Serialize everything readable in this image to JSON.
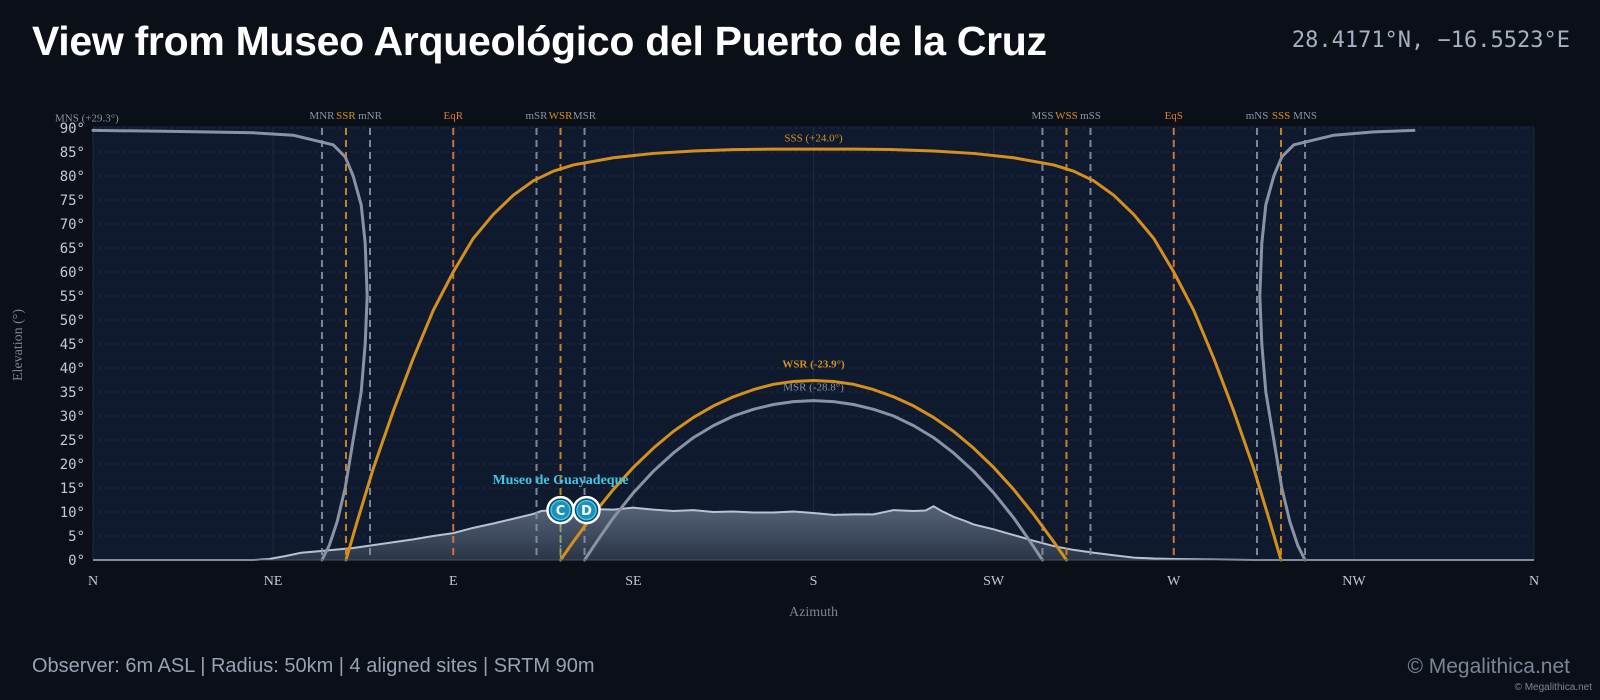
{
  "header": {
    "title": "View from Museo Arqueológico del Puerto de la Cruz",
    "coordinates": "28.4171°N, −16.5523°E"
  },
  "footer": {
    "info": "Observer: 6m ASL  |  Radius: 50km  |  4 aligned sites  |  SRTM 90m",
    "brand": "© Megalithica.net",
    "brand_small": "© Megalithica.net"
  },
  "colors": {
    "background": "#0b0f17",
    "plot_bg": "#0f1a2e",
    "solar": "#d4901f",
    "lunar": "#8a93a5",
    "equinox": "#e07b39",
    "terrain": "#b9c2d0",
    "site": "#3ec8e8"
  },
  "chart_data": {
    "type": "line",
    "title": "",
    "xlabel": "Azimuth",
    "ylabel": "Elevation (°)",
    "xlim": [
      0,
      360
    ],
    "ylim": [
      0,
      90
    ],
    "x_ticks": [
      {
        "value": 0,
        "label": "N"
      },
      {
        "value": 45,
        "label": "NE"
      },
      {
        "value": 90,
        "label": "E"
      },
      {
        "value": 135,
        "label": "SE"
      },
      {
        "value": 180,
        "label": "S"
      },
      {
        "value": 225,
        "label": "SW"
      },
      {
        "value": 270,
        "label": "W"
      },
      {
        "value": 315,
        "label": "NW"
      },
      {
        "value": 360,
        "label": "N"
      }
    ],
    "y_ticks": [
      {
        "value": 0,
        "label": "0°"
      },
      {
        "value": 5,
        "label": "5°"
      },
      {
        "value": 10,
        "label": "10°"
      },
      {
        "value": 15,
        "label": "15°"
      },
      {
        "value": 20,
        "label": "20°"
      },
      {
        "value": 25,
        "label": "25°"
      },
      {
        "value": 30,
        "label": "30°"
      },
      {
        "value": 35,
        "label": "35°"
      },
      {
        "value": 40,
        "label": "40°"
      },
      {
        "value": 45,
        "label": "45°"
      },
      {
        "value": 50,
        "label": "50°"
      },
      {
        "value": 55,
        "label": "55°"
      },
      {
        "value": 60,
        "label": "60°"
      },
      {
        "value": 65,
        "label": "65°"
      },
      {
        "value": 70,
        "label": "70°"
      },
      {
        "value": 75,
        "label": "75°"
      },
      {
        "value": 80,
        "label": "80°"
      },
      {
        "value": 85,
        "label": "85°"
      },
      {
        "value": 90,
        "label": "90°"
      }
    ],
    "grid": true,
    "vlines": [
      {
        "label": "MNR",
        "azimuth": 57.2,
        "kind": "lunar"
      },
      {
        "label": "SSR",
        "azimuth": 63.2,
        "kind": "solar"
      },
      {
        "label": "mNR",
        "azimuth": 69.2,
        "kind": "lunar"
      },
      {
        "label": "EqR",
        "azimuth": 90.0,
        "kind": "equinox"
      },
      {
        "label": "mSR",
        "azimuth": 110.8,
        "kind": "lunar"
      },
      {
        "label": "WSR",
        "azimuth": 116.8,
        "kind": "solar"
      },
      {
        "label": "MSR",
        "azimuth": 122.8,
        "kind": "lunar"
      },
      {
        "label": "MSS",
        "azimuth": 237.2,
        "kind": "lunar"
      },
      {
        "label": "WSS",
        "azimuth": 243.2,
        "kind": "solar"
      },
      {
        "label": "mSS",
        "azimuth": 249.2,
        "kind": "lunar"
      },
      {
        "label": "EqS",
        "azimuth": 270.0,
        "kind": "equinox"
      },
      {
        "label": "mNS",
        "azimuth": 290.8,
        "kind": "lunar"
      },
      {
        "label": "SSS",
        "azimuth": 296.8,
        "kind": "solar"
      },
      {
        "label": "MNS",
        "azimuth": 302.8,
        "kind": "lunar"
      }
    ],
    "series": [
      {
        "name": "SSS (+24.0°)",
        "kind": "solar",
        "x": [
          63.2,
          66,
          70,
          75,
          80,
          85,
          90,
          95,
          100,
          105,
          110,
          115,
          120,
          130,
          140,
          150,
          160,
          170,
          180,
          190,
          200,
          210,
          220,
          230,
          240,
          245,
          250,
          255,
          260,
          265,
          270,
          275,
          280,
          285,
          290,
          294,
          296.8
        ],
        "y": [
          0,
          8,
          19,
          31,
          42,
          52,
          60,
          67,
          72,
          76,
          79,
          81,
          82.3,
          83.8,
          84.7,
          85.2,
          85.5,
          85.6,
          85.6,
          85.6,
          85.5,
          85.2,
          84.7,
          83.8,
          82.3,
          81,
          79,
          76,
          72,
          67,
          60,
          52,
          42,
          31,
          19,
          8,
          0
        ]
      },
      {
        "name": "WSR (-23.9°)",
        "kind": "solar",
        "x": [
          116.8,
          120,
          125,
          130,
          135,
          140,
          145,
          150,
          155,
          160,
          165,
          170,
          175,
          180,
          185,
          190,
          195,
          200,
          205,
          210,
          215,
          220,
          225,
          230,
          235,
          240,
          243.2
        ],
        "y": [
          0,
          3.8,
          9.5,
          14.7,
          19.3,
          23.3,
          26.8,
          29.7,
          32.1,
          34,
          35.5,
          36.6,
          37.2,
          37.4,
          37.2,
          36.6,
          35.5,
          34,
          32.1,
          29.7,
          26.8,
          23.3,
          19.3,
          14.7,
          9.5,
          3.8,
          0
        ]
      },
      {
        "name": "MSR (-28.8°)",
        "kind": "lunar",
        "x": [
          122.8,
          126,
          130,
          135,
          140,
          145,
          150,
          155,
          160,
          165,
          170,
          175,
          180,
          185,
          190,
          195,
          200,
          205,
          210,
          215,
          220,
          225,
          230,
          234,
          237.2
        ],
        "y": [
          0,
          4,
          8.8,
          14,
          18.5,
          22.3,
          25.5,
          28,
          30,
          31.4,
          32.4,
          33,
          33.2,
          33,
          32.4,
          31.4,
          30,
          28,
          25.5,
          22.3,
          18.5,
          14,
          8.8,
          4,
          0
        ]
      },
      {
        "name": "MNS (+29.3°)",
        "kind": "lunar",
        "x": [
          0,
          20,
          40,
          50,
          60,
          63,
          65,
          67,
          68,
          68.5,
          68,
          67,
          65,
          63,
          61,
          59,
          57.2
        ],
        "y": [
          89.5,
          89.3,
          89,
          88.5,
          86.5,
          84,
          80,
          74,
          66,
          55,
          45,
          35,
          25,
          15,
          8,
          3,
          0
        ]
      },
      {
        "name": "",
        "kind": "lunar",
        "x": [
          302.8,
          301,
          299,
          297,
          295,
          293,
          292,
          291.5,
          292,
          293,
          295,
          297,
          300,
          310,
          320,
          330
        ],
        "y": [
          0,
          3,
          8,
          15,
          25,
          35,
          45,
          55,
          66,
          74,
          80,
          84,
          86.5,
          88.5,
          89.2,
          89.5
        ]
      },
      {
        "name": "horizon",
        "kind": "terrain",
        "x": [
          0,
          10,
          20,
          30,
          40,
          44,
          48,
          52,
          56,
          60,
          65,
          70,
          75,
          80,
          85,
          90,
          95,
          100,
          105,
          110,
          112,
          115,
          118,
          120,
          125,
          130,
          135,
          140,
          145,
          150,
          155,
          160,
          165,
          170,
          175,
          180,
          185,
          190,
          195,
          200,
          205,
          208,
          210,
          212,
          215,
          218,
          220,
          225,
          230,
          235,
          240,
          245,
          250,
          255,
          260,
          265,
          270,
          280,
          290,
          300,
          310,
          320,
          330,
          340,
          350,
          360
        ],
        "y": [
          0,
          0,
          0,
          0,
          0,
          0.2,
          0.8,
          1.5,
          1.8,
          2.1,
          2.5,
          3.1,
          3.7,
          4.3,
          5.0,
          5.6,
          6.7,
          7.6,
          8.6,
          9.6,
          10.2,
          10.4,
          10.6,
          10.3,
          10.6,
          10.5,
          10.9,
          10.5,
          10.2,
          10.4,
          10.0,
          10.1,
          9.9,
          9.9,
          10.1,
          9.8,
          9.4,
          9.5,
          9.5,
          10.4,
          10.2,
          10.3,
          11.2,
          10.2,
          9.0,
          8.1,
          7.4,
          6.4,
          5.2,
          4.0,
          2.9,
          2.1,
          1.5,
          1.0,
          0.5,
          0.3,
          0.2,
          0.1,
          0,
          0,
          0,
          0,
          0,
          0,
          0,
          0
        ]
      }
    ],
    "series_labels": [
      {
        "text": "SSS (+24.0°)",
        "x": 180,
        "y": 87.2,
        "kind": "solar",
        "bold": false
      },
      {
        "text": "WSR (-23.9°)",
        "x": 180,
        "y": 40.1,
        "kind": "solar",
        "bold": true
      },
      {
        "text": "MSR (-28.8°)",
        "x": 180,
        "y": 35.3,
        "kind": "lunar",
        "bold": false
      },
      {
        "text": "MNS (+29.3°)",
        "x": 0,
        "y": 91.4,
        "kind": "lunar",
        "bold": false
      }
    ],
    "sites": [
      {
        "name": "Museo de Guayadeque",
        "markers": [
          "C",
          "D"
        ],
        "azimuth": 116.8,
        "elevation": 10.4
      }
    ]
  }
}
